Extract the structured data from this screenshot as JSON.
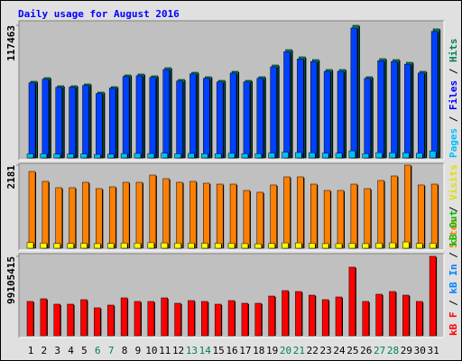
{
  "chart_data": {
    "type": "bar",
    "title": "Daily usage for August 2016",
    "categories": [
      "1",
      "2",
      "3",
      "4",
      "5",
      "6",
      "7",
      "8",
      "9",
      "10",
      "11",
      "12",
      "13",
      "14",
      "15",
      "16",
      "17",
      "18",
      "19",
      "20",
      "21",
      "22",
      "23",
      "24",
      "25",
      "26",
      "27",
      "28",
      "29",
      "30",
      "31"
    ],
    "category_color": "#000000",
    "highlight_color": "#00805c",
    "highlight_categories": [
      5,
      6,
      12,
      13,
      19,
      20,
      26,
      27
    ],
    "panels": [
      {
        "ylim": [
          0,
          117463
        ],
        "yticks": [
          117463
        ],
        "separator": " / ",
        "legend": [
          {
            "text": "Pages",
            "color": "#00c0ff"
          },
          {
            "text": "Files",
            "color": "#0000ff"
          },
          {
            "text": "Hits",
            "color": "#00805c"
          }
        ],
        "series": [
          {
            "color": "#00805c",
            "values": [
              67920,
              71120,
              63930,
              63930,
              65530,
              58340,
              63130,
              73520,
              74320,
              72720,
              79910,
              69520,
              75910,
              71920,
              68720,
              76710,
              68720,
              71920,
              82310,
              95890,
              89500,
              87100,
              78310,
              78310,
              117463,
              71920,
              87900,
              87100,
              84700,
              76710,
              114270
            ]
          },
          {
            "color": "#0040ff",
            "values": [
              66500,
              69800,
              62600,
              62700,
              64200,
              57100,
              61900,
              72100,
              72800,
              71300,
              78300,
              68100,
              74400,
              70500,
              67300,
              75200,
              67300,
              70500,
              80700,
              94000,
              87700,
              85400,
              76700,
              76700,
              115100,
              70500,
              86100,
              85400,
              83000,
              75200,
              112000
            ]
          },
          {
            "color": "#00c0ff",
            "values": [
              3600,
              3800,
              3400,
              3400,
              3500,
              3100,
              3300,
              3900,
              4000,
              3900,
              4300,
              3700,
              4000,
              3800,
              3700,
              4100,
              3700,
              3800,
              4400,
              5100,
              4800,
              4600,
              4200,
              4200,
              6300,
              3800,
              4700,
              4600,
              4500,
              4100,
              6100
            ]
          }
        ]
      },
      {
        "ylim": [
          0,
          2181
        ],
        "yticks": [
          2181
        ],
        "separator": " / ",
        "legend": [
          {
            "text": "Sites",
            "color": "#ff8000"
          },
          {
            "text": "Visits",
            "color": "#e0e000"
          }
        ],
        "series": [
          {
            "color": "#ff8000",
            "values": [
              2015,
              1755,
              1589,
              1589,
              1731,
              1565,
              1612,
              1731,
              1731,
              1920,
              1826,
              1731,
              1755,
              1707,
              1683,
              1683,
              1517,
              1470,
              1660,
              1873,
              1873,
              1683,
              1517,
              1517,
              1683,
              1565,
              1778,
              1897,
              2181,
              1660,
              1683
            ]
          },
          {
            "color": "#ffff00",
            "values": [
              150,
              135,
              125,
              125,
              130,
              120,
              125,
              135,
              135,
              145,
              140,
              135,
              135,
              130,
              130,
              130,
              120,
              115,
              125,
              140,
              140,
              130,
              120,
              120,
              130,
              120,
              135,
              140,
              165,
              125,
              130
            ]
          }
        ]
      },
      {
        "ylim": [
          0,
          99105415
        ],
        "yticks": [
          99105415
        ],
        "separator": " / ",
        "legend": [
          {
            "text": "kB F",
            "color": "#ff0000"
          },
          {
            "text": "kB In",
            "color": "#0080ff"
          },
          {
            "text": "kB Out",
            "color": "#00c000"
          }
        ],
        "series": [
          {
            "color": "#ff0000",
            "values": [
              42800000,
              46170000,
              39420000,
              39420000,
              45050000,
              34910000,
              38290000,
              47300000,
              42800000,
              42800000,
              47300000,
              40540000,
              43920000,
              42800000,
              39420000,
              43920000,
              40540000,
              40540000,
              49550000,
              56310000,
              55180000,
              50680000,
              45050000,
              48430000,
              85590000,
              42800000,
              51810000,
              55180000,
              50680000,
              42800000,
              99105415
            ]
          }
        ]
      }
    ]
  }
}
